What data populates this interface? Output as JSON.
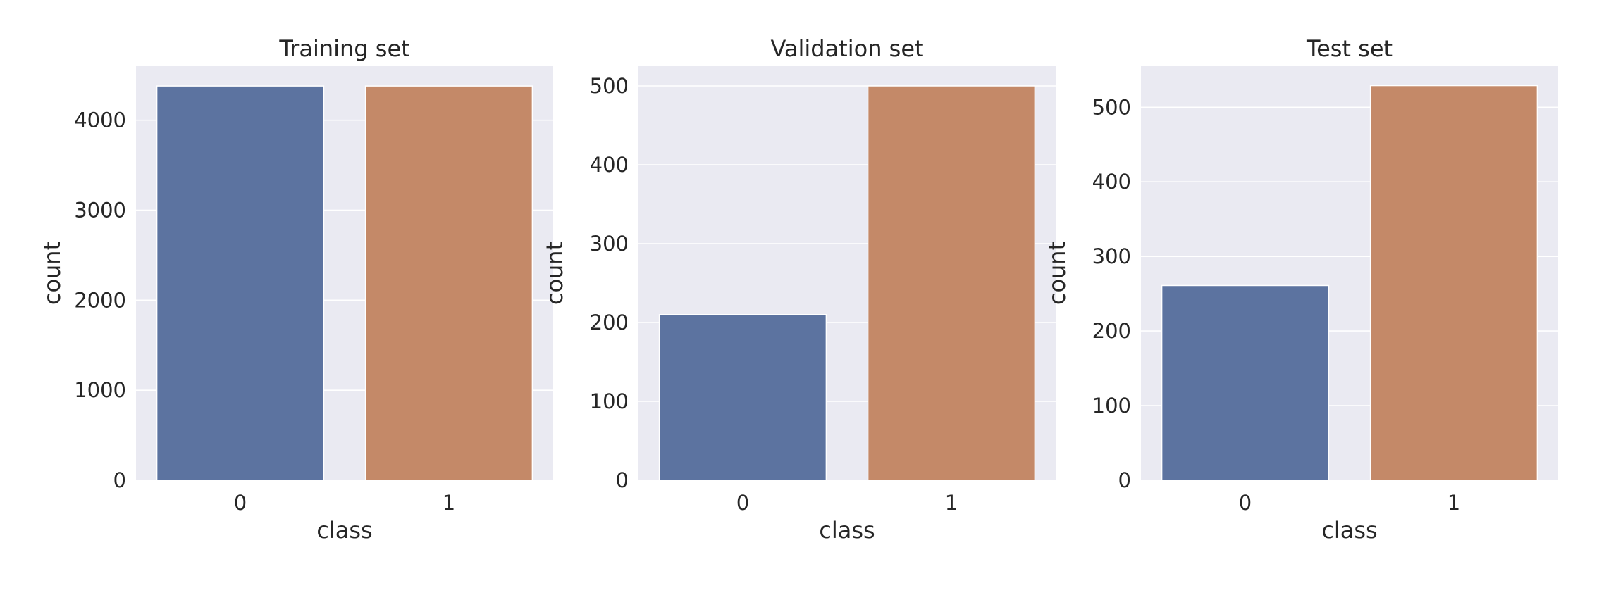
{
  "colors": {
    "plot_background": "#eaeaf2",
    "grid": "#ffffff",
    "text": "#262626",
    "class_0": "#5c73a0",
    "class_1": "#c48968"
  },
  "chart_data": [
    {
      "type": "bar",
      "title": "Training set",
      "xlabel": "class",
      "ylabel": "count",
      "categories": [
        "0",
        "1"
      ],
      "values": [
        4380,
        4380
      ],
      "ylim": [
        0,
        4600
      ],
      "yticks": [
        0,
        1000,
        2000,
        3000,
        4000
      ],
      "grid": true
    },
    {
      "type": "bar",
      "title": "Validation set",
      "xlabel": "class",
      "ylabel": "count",
      "categories": [
        "0",
        "1"
      ],
      "values": [
        210,
        500
      ],
      "ylim": [
        0,
        525
      ],
      "yticks": [
        0,
        100,
        200,
        300,
        400,
        500
      ],
      "grid": true
    },
    {
      "type": "bar",
      "title": "Test set",
      "xlabel": "class",
      "ylabel": "count",
      "categories": [
        "0",
        "1"
      ],
      "values": [
        261,
        529
      ],
      "ylim": [
        0,
        555
      ],
      "yticks": [
        0,
        100,
        200,
        300,
        400,
        500
      ],
      "grid": true
    }
  ]
}
